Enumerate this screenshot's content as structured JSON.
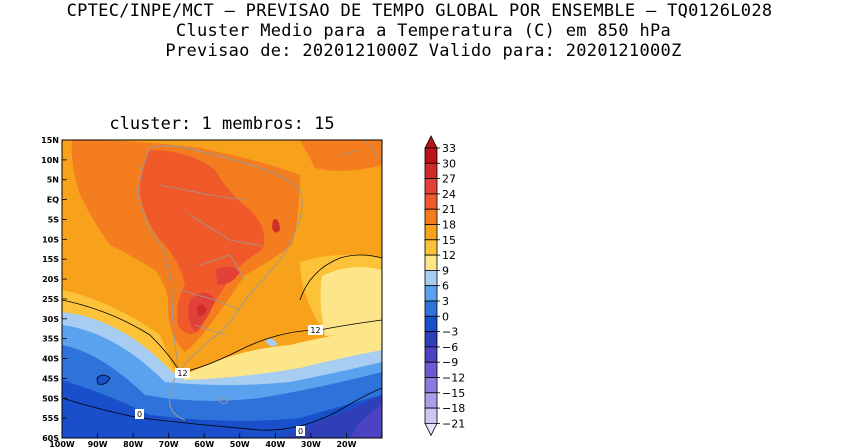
{
  "header": {
    "line1": "CPTEC/INPE/MCT – PREVISAO DE TEMPO GLOBAL POR ENSEMBLE – TQ0126L028",
    "line2": "Cluster Medio para a Temperatura (C) em 850 hPa",
    "line3": "Previsao de: 2020121000Z   Valido para: 2020121000Z"
  },
  "panel": {
    "title": "cluster: 1  membros: 15"
  },
  "axes": {
    "lat_labels": [
      "15N",
      "10N",
      "5N",
      "EQ",
      "5S",
      "10S",
      "15S",
      "20S",
      "25S",
      "30S",
      "35S",
      "40S",
      "45S",
      "50S",
      "55S",
      "60S"
    ],
    "lon_labels": [
      "100W",
      "90W",
      "80W",
      "70W",
      "60W",
      "50W",
      "40W",
      "30W",
      "20W"
    ]
  },
  "colorbar": {
    "labels": [
      "33",
      "30",
      "27",
      "24",
      "21",
      "18",
      "15",
      "12",
      "9",
      "6",
      "3",
      "0",
      "−3",
      "−6",
      "−9",
      "−12",
      "−15",
      "−18",
      "−21"
    ],
    "colors": [
      "#b9131a",
      "#cf2c2a",
      "#e2413a",
      "#f05a2a",
      "#f47d1f",
      "#f8a21c",
      "#fcc23a",
      "#fde68a",
      "#a8cdf2",
      "#5aa2ee",
      "#2d73d9",
      "#1a4fcc",
      "#2f3fb8",
      "#4b43c4",
      "#6b5ad2",
      "#8d7ade",
      "#ad9ce8",
      "#cfc4f2",
      "#e8e2fa"
    ]
  },
  "contour_labels": [
    "12",
    "12",
    "0",
    "0"
  ],
  "colors": {
    "ocean_warm": "#f8a21c",
    "land_hot": "#f05a2a",
    "cold_south": "#1a4fcc",
    "border": "#9a9a9a"
  }
}
